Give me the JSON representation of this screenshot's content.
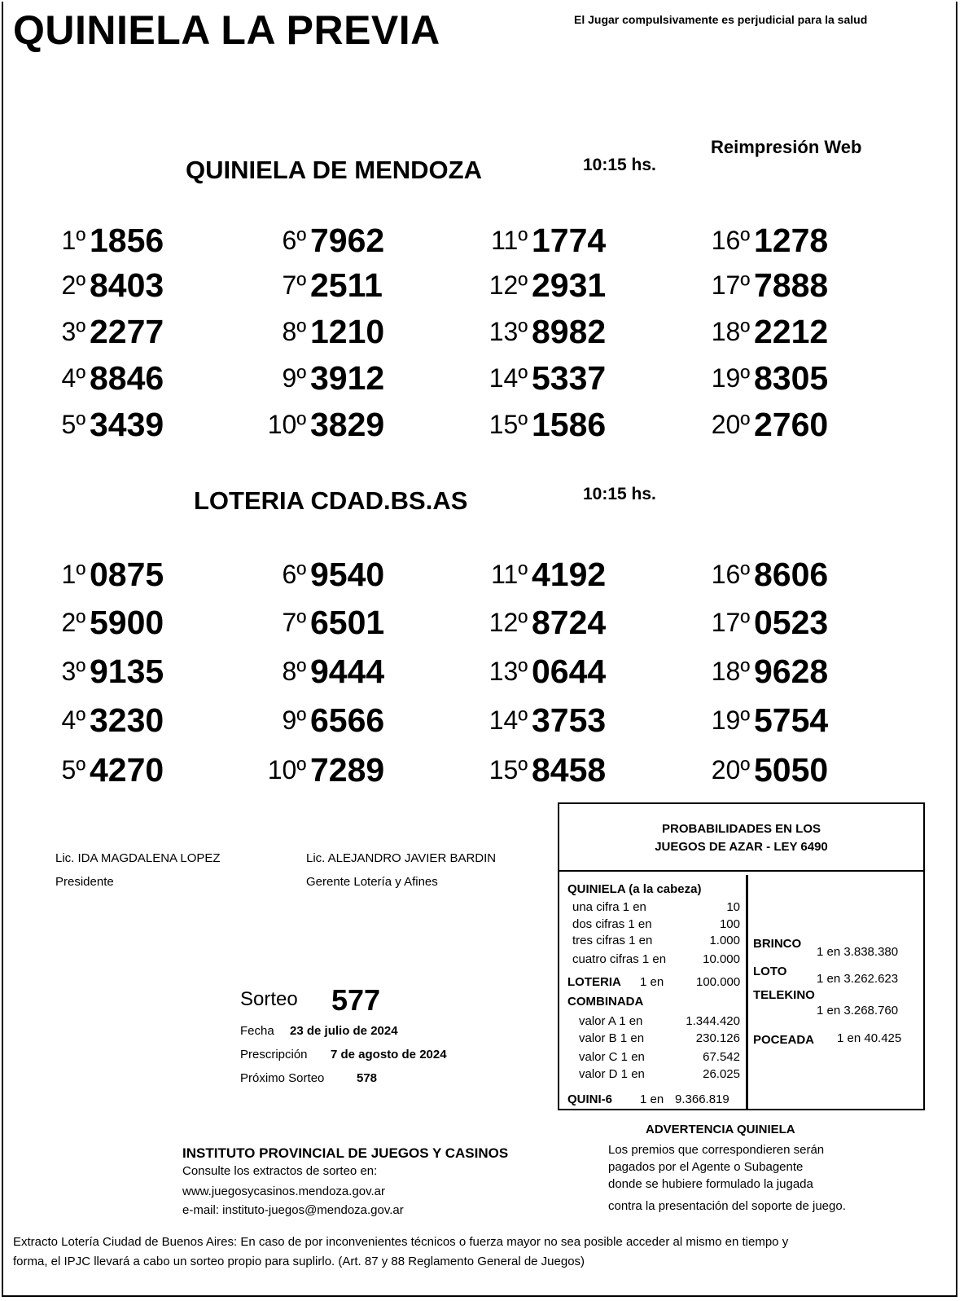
{
  "header": {
    "title": "QUINIELA LA PREVIA",
    "warning": "El Jugar compulsivamente es perjudicial para la salud",
    "reprint": "Reimpresión Web"
  },
  "mendoza": {
    "title": "QUINIELA  DE MENDOZA",
    "time": "10:15 hs.",
    "results": [
      {
        "pos": "1º",
        "num": "1856"
      },
      {
        "pos": "2º",
        "num": "8403"
      },
      {
        "pos": "3º",
        "num": "2277"
      },
      {
        "pos": "4º",
        "num": "8846"
      },
      {
        "pos": "5º",
        "num": "3439"
      },
      {
        "pos": "6º",
        "num": "7962"
      },
      {
        "pos": "7º",
        "num": "2511"
      },
      {
        "pos": "8º",
        "num": "1210"
      },
      {
        "pos": "9º",
        "num": "3912"
      },
      {
        "pos": "10º",
        "num": "3829"
      },
      {
        "pos": "11º",
        "num": "1774"
      },
      {
        "pos": "12º",
        "num": "2931"
      },
      {
        "pos": "13º",
        "num": "8982"
      },
      {
        "pos": "14º",
        "num": "5337"
      },
      {
        "pos": "15º",
        "num": "1586"
      },
      {
        "pos": "16º",
        "num": "1278"
      },
      {
        "pos": "17º",
        "num": "7888"
      },
      {
        "pos": "18º",
        "num": "2212"
      },
      {
        "pos": "19º",
        "num": "8305"
      },
      {
        "pos": "20º",
        "num": "2760"
      }
    ]
  },
  "loteria": {
    "title": "LOTERIA CDAD.BS.AS",
    "time": "10:15 hs.",
    "results": [
      {
        "pos": "1º",
        "num": "0875"
      },
      {
        "pos": "2º",
        "num": "5900"
      },
      {
        "pos": "3º",
        "num": "9135"
      },
      {
        "pos": "4º",
        "num": "3230"
      },
      {
        "pos": "5º",
        "num": "4270"
      },
      {
        "pos": "6º",
        "num": "9540"
      },
      {
        "pos": "7º",
        "num": "6501"
      },
      {
        "pos": "8º",
        "num": "9444"
      },
      {
        "pos": "9º",
        "num": "6566"
      },
      {
        "pos": "10º",
        "num": "7289"
      },
      {
        "pos": "11º",
        "num": "4192"
      },
      {
        "pos": "12º",
        "num": "8724"
      },
      {
        "pos": "13º",
        "num": "0644"
      },
      {
        "pos": "14º",
        "num": "3753"
      },
      {
        "pos": "15º",
        "num": "8458"
      },
      {
        "pos": "16º",
        "num": "8606"
      },
      {
        "pos": "17º",
        "num": "0523"
      },
      {
        "pos": "18º",
        "num": "9628"
      },
      {
        "pos": "19º",
        "num": "5754"
      },
      {
        "pos": "20º",
        "num": "5050"
      }
    ]
  },
  "signatures": [
    {
      "name": "Lic. IDA MAGDALENA LOPEZ",
      "role": "Presidente"
    },
    {
      "name": "Lic. ALEJANDRO JAVIER BARDIN",
      "role": "Gerente Lotería y Afines"
    }
  ],
  "sorteo": {
    "label": "Sorteo",
    "number": "577",
    "fecha_label": "Fecha",
    "fecha": "23 de julio de 2024",
    "prescripcion_label": "Prescripción",
    "prescripcion": "7 de agosto de 2024",
    "proximo_label": "Próximo Sorteo",
    "proximo": "578"
  },
  "probabilidades": {
    "title1": "PROBABILIDADES EN LOS",
    "title2": "JUEGOS DE AZAR - LEY 6490",
    "quiniela_title": "QUINIELA (a la cabeza)",
    "quiniela": [
      {
        "label": "una cifra  1 en",
        "value": "10"
      },
      {
        "label": "dos cifras 1 en",
        "value": "100"
      },
      {
        "label": "tres cifras 1 en",
        "value": "1.000"
      },
      {
        "label": "cuatro cifras 1 en",
        "value": "10.000"
      }
    ],
    "loteria_label": "LOTERIA",
    "loteria_en": "1 en",
    "loteria_value": "100.000",
    "combinada_title": "COMBINADA",
    "combinada": [
      {
        "label": "valor A 1 en",
        "value": "1.344.420"
      },
      {
        "label": "valor B 1 en",
        "value": "230.126"
      },
      {
        "label": "valor C 1 en",
        "value": "67.542"
      },
      {
        "label": "valor D 1 en",
        "value": "26.025"
      }
    ],
    "quini6_label": "QUINI-6",
    "quini6_en": "1 en",
    "quini6_value": "9.366.819",
    "brinco_label": "BRINCO",
    "brinco": "1 en 3.838.380",
    "loto_label": "LOTO",
    "loto": "1 en 3.262.623",
    "telekino_label": "TELEKINO",
    "telekino": "1 en 3.268.760",
    "poceada_label": "POCEADA",
    "poceada": "1 en 40.425"
  },
  "advertencia": {
    "title": "ADVERTENCIA QUINIELA",
    "lines": [
      "Los premios que correspondieren serán",
      "pagados por el Agente o Subagente",
      "donde se hubiere formulado la jugada",
      "contra la presentación del soporte de juego."
    ]
  },
  "instituto": {
    "title": "INSTITUTO PROVINCIAL DE JUEGOS Y CASINOS",
    "consult": "Consulte los extractos de sorteo en:",
    "web": "www.juegosycasinos.mendoza.gov.ar",
    "email": "e-mail:  instituto-juegos@mendoza.gov.ar"
  },
  "footer": {
    "line1": "Extracto Lotería Ciudad de Buenos Aires: En caso de por inconvenientes técnicos o fuerza mayor no sea posible acceder al mismo en tiempo y",
    "line2": "forma, el IPJC llevará a cabo un sorteo propio para suplirlo. (Art. 87 y 88 Reglamento General de Juegos)"
  }
}
